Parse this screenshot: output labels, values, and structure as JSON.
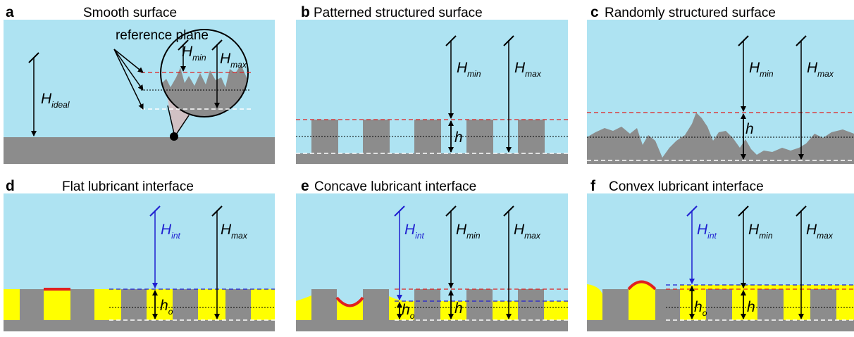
{
  "panels": [
    {
      "letter": "a",
      "title": "Smooth surface",
      "note": "reference plane",
      "labels": [
        {
          "main": "H",
          "sub": "ideal"
        },
        {
          "main": "H",
          "sub": "min"
        },
        {
          "main": "H",
          "sub": "max"
        }
      ]
    },
    {
      "letter": "b",
      "title": "Patterned structured surface",
      "labels": [
        {
          "main": "H",
          "sub": "min"
        },
        {
          "main": "H",
          "sub": "max"
        },
        {
          "main": "h"
        }
      ]
    },
    {
      "letter": "c",
      "title": "Randomly structured surface",
      "labels": [
        {
          "main": "H",
          "sub": "min"
        },
        {
          "main": "H",
          "sub": "max"
        },
        {
          "main": "h"
        }
      ]
    },
    {
      "letter": "d",
      "title": "Flat lubricant interface",
      "labels": [
        {
          "main": "H",
          "sub": "int"
        },
        {
          "main": "H",
          "sub": "max"
        },
        {
          "main": "h",
          "sub": "o"
        }
      ]
    },
    {
      "letter": "e",
      "title": "Concave lubricant interface",
      "labels": [
        {
          "main": "H",
          "sub": "int"
        },
        {
          "main": "H",
          "sub": "min"
        },
        {
          "main": "H",
          "sub": "max"
        },
        {
          "main": "h",
          "sub": "o"
        },
        {
          "main": "h"
        }
      ]
    },
    {
      "letter": "f",
      "title": "Convex lubricant interface",
      "labels": [
        {
          "main": "H",
          "sub": "int"
        },
        {
          "main": "H",
          "sub": "min"
        },
        {
          "main": "H",
          "sub": "max"
        },
        {
          "main": "h",
          "sub": "o"
        },
        {
          "main": "h"
        }
      ]
    }
  ]
}
